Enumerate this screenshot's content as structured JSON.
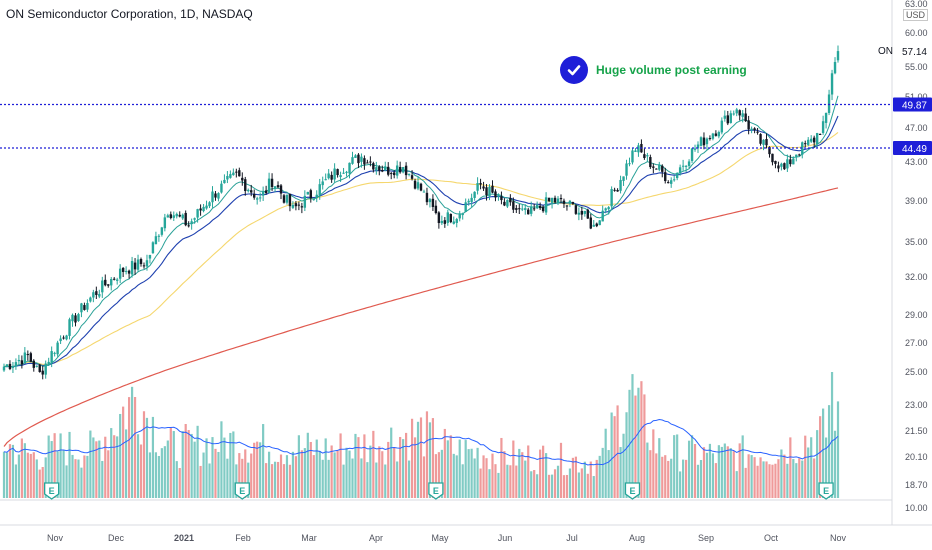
{
  "header": {
    "symbol_title": "ON Semiconductor Corporation, 1D, NASDAQ",
    "ticker": "ON",
    "currency": "USD"
  },
  "annotation": {
    "text": "Huge volume post earning",
    "icon": "check-circle-icon"
  },
  "colors": {
    "up": "#26a69a",
    "down": "#ef5350",
    "ema_fast": "#2aa198",
    "ema_mid": "#1e40af",
    "sma_50": "#f5d76e",
    "sma_200": "#e05a4f",
    "level_line": "#1e1ed8",
    "volume_up": "#80cbc4",
    "volume_down": "#ef9a9a",
    "volume_ma": "#2962ff",
    "earnings_badge": "#26a69a"
  },
  "chart_data": {
    "type": "candlestick",
    "title": "ON Semiconductor Corporation, 1D, NASDAQ",
    "x_labels": [
      "Nov",
      "Dec",
      "2021",
      "Feb",
      "Mar",
      "Apr",
      "May",
      "Jun",
      "Jul",
      "Aug",
      "Sep",
      "Oct",
      "Nov"
    ],
    "y_ticks": [
      "63.00",
      "60.00",
      "55.00",
      "51.00",
      "47.00",
      "43.00",
      "39.00",
      "35.00",
      "32.00",
      "29.00",
      "27.00",
      "25.00",
      "23.00",
      "21.50",
      "20.10",
      "18.70",
      "10.00"
    ],
    "y_scale": "log",
    "ylim": [
      10,
      63
    ],
    "last_price": "57.14",
    "horizontal_levels": [
      {
        "value": 49.87,
        "label": "49.87"
      },
      {
        "value": 44.49,
        "label": "44.49"
      }
    ],
    "price_anchors": [
      [
        0,
        25.3
      ],
      [
        8,
        26.0
      ],
      [
        12,
        24.8
      ],
      [
        20,
        27.6
      ],
      [
        30,
        30.5
      ],
      [
        40,
        32.5
      ],
      [
        48,
        33.2
      ],
      [
        55,
        38.0
      ],
      [
        62,
        36.5
      ],
      [
        70,
        39.5
      ],
      [
        78,
        41.5
      ],
      [
        86,
        39.0
      ],
      [
        90,
        41.0
      ],
      [
        97,
        38.0
      ],
      [
        105,
        40.0
      ],
      [
        112,
        42.0
      ],
      [
        120,
        43.5
      ],
      [
        128,
        42.0
      ],
      [
        134,
        42.5
      ],
      [
        140,
        40.0
      ],
      [
        146,
        37.0
      ],
      [
        152,
        37.5
      ],
      [
        160,
        40.5
      ],
      [
        168,
        38.5
      ],
      [
        176,
        37.5
      ],
      [
        184,
        39.0
      ],
      [
        192,
        38.2
      ],
      [
        198,
        36.3
      ],
      [
        206,
        40.5
      ],
      [
        212,
        44.5
      ],
      [
        218,
        42.5
      ],
      [
        224,
        41.0
      ],
      [
        232,
        44.5
      ],
      [
        240,
        47.0
      ],
      [
        246,
        49.5
      ],
      [
        252,
        46.0
      ],
      [
        258,
        43.5
      ],
      [
        262,
        42.0
      ],
      [
        266,
        44.0
      ],
      [
        272,
        45.5
      ],
      [
        276,
        48.0
      ],
      [
        278,
        54.0
      ],
      [
        280,
        57.14
      ]
    ],
    "volume_anchors": [
      [
        0,
        0.45
      ],
      [
        10,
        0.35
      ],
      [
        20,
        0.42
      ],
      [
        30,
        0.4
      ],
      [
        44,
        0.85
      ],
      [
        55,
        0.42
      ],
      [
        66,
        0.45
      ],
      [
        80,
        0.48
      ],
      [
        94,
        0.42
      ],
      [
        110,
        0.4
      ],
      [
        122,
        0.45
      ],
      [
        140,
        0.55
      ],
      [
        150,
        0.4
      ],
      [
        170,
        0.35
      ],
      [
        190,
        0.32
      ],
      [
        200,
        0.3
      ],
      [
        210,
        0.9
      ],
      [
        220,
        0.4
      ],
      [
        240,
        0.35
      ],
      [
        260,
        0.4
      ],
      [
        276,
        0.55
      ],
      [
        278,
        1.0
      ],
      [
        280,
        0.6
      ]
    ],
    "earnings_markers": [
      16,
      80,
      145,
      211,
      276
    ],
    "earnings_label": "E"
  }
}
